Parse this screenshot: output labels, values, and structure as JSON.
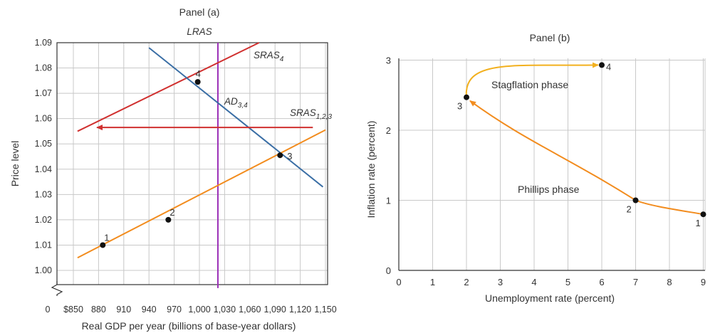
{
  "chart_data": [
    {
      "type": "line",
      "title": "Panel (a)",
      "xlabel": "Real GDP per year (billions of base-year dollars)",
      "ylabel": "Price level",
      "x_origin_label": "0",
      "x_tick_labels": [
        "$850",
        "880",
        "910",
        "940",
        "970",
        "1,000",
        "1,030",
        "1,060",
        "1,090",
        "1,120",
        "1,150"
      ],
      "x_ticks": [
        850,
        880,
        910,
        940,
        970,
        1000,
        1030,
        1060,
        1090,
        1120,
        1150
      ],
      "y_tick_labels": [
        "1.00",
        "1.01",
        "1.02",
        "1.03",
        "1.04",
        "1.05",
        "1.06",
        "1.07",
        "1.08",
        "1.09"
      ],
      "y_ticks": [
        1.0,
        1.01,
        1.02,
        1.03,
        1.04,
        1.05,
        1.06,
        1.07,
        1.08,
        1.09
      ],
      "xlim": [
        850,
        1150
      ],
      "ylim": [
        1.0,
        1.09
      ],
      "grid": true,
      "series": [
        {
          "name": "LRAS",
          "color": "#9b30b8",
          "x": [
            1022,
            1022
          ],
          "y": [
            0.993,
            1.09
          ]
        },
        {
          "name": "SRAS",
          "sub": "4",
          "color": "#d0302f",
          "x": [
            855,
            1071
          ],
          "y": [
            1.055,
            1.09
          ]
        },
        {
          "name": "AD",
          "sub": "3,4",
          "color": "#3a6ea5",
          "x": [
            940,
            1147
          ],
          "y": [
            1.088,
            1.033
          ]
        },
        {
          "name": "SRAS",
          "sub": "1,2,3",
          "color": "#f28c1e",
          "x": [
            855,
            1150
          ],
          "y": [
            1.005,
            1.0555
          ]
        }
      ],
      "arrow": {
        "color": "#d0302f",
        "x_from": 1135,
        "x_to": 878,
        "y": 1.0565
      },
      "points": [
        {
          "label": "1",
          "x": 885,
          "y": 1.01
        },
        {
          "label": "2",
          "x": 963,
          "y": 1.02
        },
        {
          "label": "3",
          "x": 1096,
          "y": 1.0455
        },
        {
          "label": "4",
          "x": 998,
          "y": 1.0745
        }
      ]
    },
    {
      "type": "line",
      "title": "Panel (b)",
      "xlabel": "Unemployment rate (percent)",
      "ylabel": "Inflation rate (percent)",
      "x_ticks": [
        0,
        1,
        2,
        3,
        4,
        5,
        6,
        7,
        8,
        9
      ],
      "y_ticks": [
        0,
        1,
        2,
        3
      ],
      "xlim": [
        0,
        9.4
      ],
      "ylim": [
        0,
        3.02
      ],
      "grid": true,
      "points": [
        {
          "label": "1",
          "x": 9,
          "y": 0.8
        },
        {
          "label": "2",
          "x": 7,
          "y": 1.0
        },
        {
          "label": "3",
          "x": 2,
          "y": 2.47
        },
        {
          "label": "4",
          "x": 6,
          "y": 2.93
        }
      ],
      "phases": [
        {
          "name": "Phillips phase",
          "color": "#f28c1e"
        },
        {
          "name": "Stagflation phase",
          "color": "#f2b01e"
        }
      ]
    }
  ]
}
